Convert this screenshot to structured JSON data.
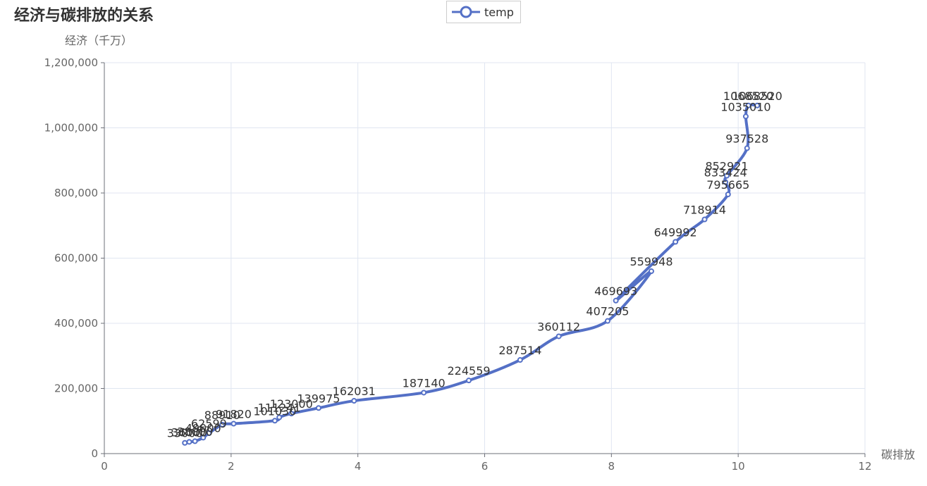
{
  "chart_data": {
    "type": "line",
    "title": "经济与碳排放的关系",
    "xlabel": "碳排放",
    "ylabel": "经济（千万）",
    "xlim": [
      0,
      12
    ],
    "ylim": [
      0,
      1200000
    ],
    "x_ticks": [
      "0",
      "2",
      "4",
      "6",
      "8",
      "10",
      "12"
    ],
    "y_ticks": [
      "0",
      "200,000",
      "400,000",
      "600,000",
      "800,000",
      "1,000,000",
      "1,200,000"
    ],
    "grid": true,
    "legend_position": "top-center",
    "series": [
      {
        "name": "temp",
        "color": "#5470c6",
        "smooth": true,
        "points": [
          {
            "x": 1.27,
            "y": 33000,
            "label": "33000"
          },
          {
            "x": 1.34,
            "y": 36000,
            "label": "36000"
          },
          {
            "x": 1.43,
            "y": 38000,
            "label": "38000"
          },
          {
            "x": 1.56,
            "y": 49000,
            "label": "49000"
          },
          {
            "x": 1.65,
            "y": 62599,
            "label": "62599"
          },
          {
            "x": 1.86,
            "y": 88910,
            "label": "88910"
          },
          {
            "x": 2.04,
            "y": 91820,
            "label": "91820"
          },
          {
            "x": 2.69,
            "y": 101030,
            "label": "101030"
          },
          {
            "x": 2.76,
            "y": 111241,
            "label": "111241"
          },
          {
            "x": 2.95,
            "y": 123000,
            "label": "123000"
          },
          {
            "x": 3.38,
            "y": 139975,
            "label": "139975"
          },
          {
            "x": 3.94,
            "y": 162031,
            "label": "162031"
          },
          {
            "x": 5.04,
            "y": 187140,
            "label": "187140"
          },
          {
            "x": 5.75,
            "y": 224559,
            "label": "224559"
          },
          {
            "x": 6.56,
            "y": 287514,
            "label": "287514"
          },
          {
            "x": 7.17,
            "y": 360112,
            "label": "360112"
          },
          {
            "x": 7.94,
            "y": 407205,
            "label": "407205"
          },
          {
            "x": 8.63,
            "y": 559948,
            "label": "559948"
          },
          {
            "x": 8.07,
            "y": 469693,
            "label": "469693"
          },
          {
            "x": 9.01,
            "y": 649992,
            "label": "649992"
          },
          {
            "x": 9.47,
            "y": 718914,
            "label": "718914"
          },
          {
            "x": 9.84,
            "y": 795665,
            "label": "795665"
          },
          {
            "x": 9.8,
            "y": 833424,
            "label": "833424"
          },
          {
            "x": 9.82,
            "y": 852921,
            "label": "852921"
          },
          {
            "x": 10.14,
            "y": 937528,
            "label": "937528"
          },
          {
            "x": 10.12,
            "y": 1035010,
            "label": "1035010"
          },
          {
            "x": 10.16,
            "y": 1068520,
            "label": "1068520"
          },
          {
            "x": 10.3,
            "y": 1068520,
            "label": "1068520"
          }
        ]
      }
    ]
  }
}
